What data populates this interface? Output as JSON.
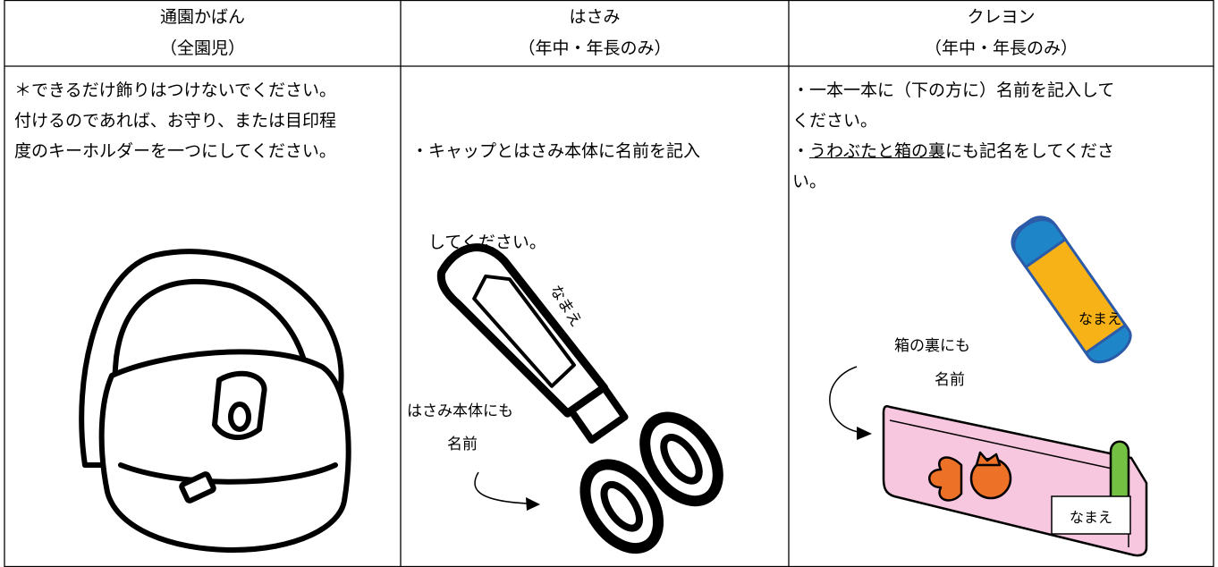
{
  "table": {
    "columns": [
      {
        "title": "通園かばん",
        "subtitle": "（全園児）",
        "lines": [
          "＊できるだけ飾りはつけないでください。",
          "付けるのであれば、お守り、または目印程",
          "度のキーホルダーを一つにしてください。"
        ]
      },
      {
        "title": "はさみ",
        "subtitle": "（年中・年長のみ）",
        "lines": [
          "・キャップとはさみ本体に名前を記入",
          "　してください。"
        ],
        "labels": [
          "なまえ",
          "はさみ本体にも",
          "名前"
        ]
      },
      {
        "title": "クレヨン",
        "subtitle": "（年中・年長のみ）",
        "lines": [
          "・一本一本に（下の方に）名前を記入して",
          "ください。"
        ],
        "underlined_line": {
          "prefix": "・",
          "underlined": "うわぶたと箱の裏",
          "suffix": "にも記名をしてくださ"
        },
        "last_line": "い。",
        "labels": [
          "なまえ",
          "箱の裏にも",
          "名前",
          "なまえ"
        ]
      }
    ]
  }
}
